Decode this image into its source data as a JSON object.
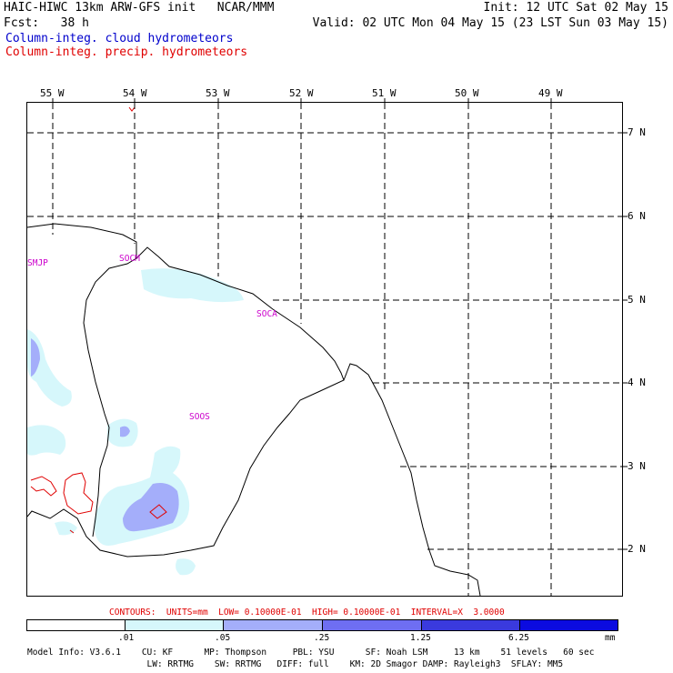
{
  "header": {
    "title_left": "HAIC-HIWC 13km ARW-GFS init   NCAR/MMM",
    "fcst": "Fcst:   38 h",
    "init": "Init: 12 UTC Sat 02 May 15",
    "valid": "Valid: 02 UTC Mon 04 May 15 (23 LST Sun 03 May 15)",
    "legend_cloud": "Column-integ. cloud hydrometeors",
    "legend_precip": "Column-integ. precip. hydrometeors",
    "color_cloud": "#0000cc",
    "color_precip": "#e00000"
  },
  "lon_labels": [
    "55 W",
    "54 W",
    "53 W",
    "52 W",
    "51 W",
    "50 W",
    "49 W"
  ],
  "lat_labels": [
    "7 N",
    "6 N",
    "5 N",
    "4 N",
    "3 N",
    "2 N"
  ],
  "stations": {
    "smjp": "SMJP",
    "socm": "SOCM",
    "soca": "SOCA",
    "soos": "SOOS"
  },
  "contours_text": "CONTOURS:  UNITS=mm  LOW= 0.10000E-01  HIGH= 0.10000E-01  INTERVAL=X  3.0000",
  "colorbar": {
    "ticks": [
      ".01",
      ".05",
      ".25",
      "1.25",
      "6.25"
    ],
    "units": "mm",
    "colors": [
      "#ffffff",
      "#d6f7fb",
      "#a4aefa",
      "#6e6ef2",
      "#3a3ade",
      "#0b0be0"
    ]
  },
  "model_info": {
    "line1": "Model Info: V3.6.1    CU: KF      MP: Thompson     PBL: YSU      SF: Noah LSM     13 km    51 levels   60 sec",
    "line2": "                       LW: RRTMG    SW: RRTMG   DIFF: full    KM: 2D Smagor DAMP: Rayleigh3  SFLAY: MM5"
  }
}
